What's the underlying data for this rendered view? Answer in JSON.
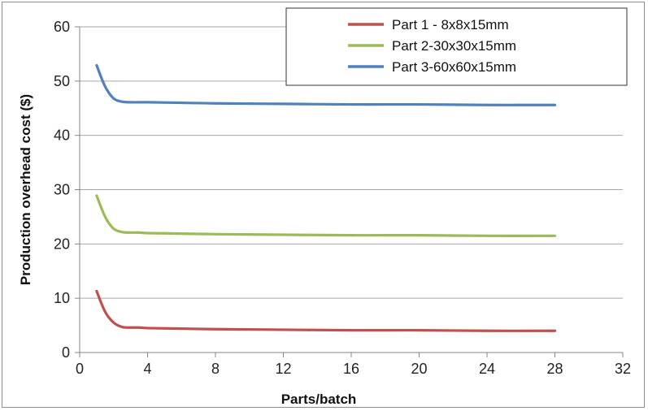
{
  "chart_data": {
    "type": "line",
    "title": "",
    "xlabel": "Parts/batch",
    "ylabel": "Production overhead cost ($)",
    "xlim": [
      0,
      32
    ],
    "ylim": [
      0,
      60
    ],
    "xticks": [
      0,
      4,
      8,
      12,
      16,
      20,
      24,
      28,
      32
    ],
    "yticks": [
      0,
      10,
      20,
      30,
      40,
      50,
      60
    ],
    "grid": "horizontal",
    "legend": "top-right",
    "x": [
      1,
      1.5,
      2,
      2.5,
      3,
      3.5,
      4,
      6,
      8,
      12,
      16,
      20,
      24,
      28
    ],
    "series": [
      {
        "name": "Part 1 - 8x8x15mm",
        "color": "#c0504d",
        "values": [
          11.3,
          7.5,
          5.5,
          4.7,
          4.6,
          4.6,
          4.5,
          4.4,
          4.3,
          4.2,
          4.1,
          4.1,
          4.0,
          4.0
        ]
      },
      {
        "name": "Part 2-30x30x15mm",
        "color": "#9bbb59",
        "values": [
          28.9,
          25.0,
          22.8,
          22.2,
          22.1,
          22.1,
          22.0,
          21.9,
          21.8,
          21.7,
          21.6,
          21.6,
          21.5,
          21.5
        ]
      },
      {
        "name": "Part 3-60x60x15mm",
        "color": "#4f81bd",
        "values": [
          52.9,
          49.0,
          46.8,
          46.2,
          46.1,
          46.1,
          46.1,
          46.0,
          45.9,
          45.8,
          45.7,
          45.7,
          45.6,
          45.6
        ]
      }
    ]
  }
}
